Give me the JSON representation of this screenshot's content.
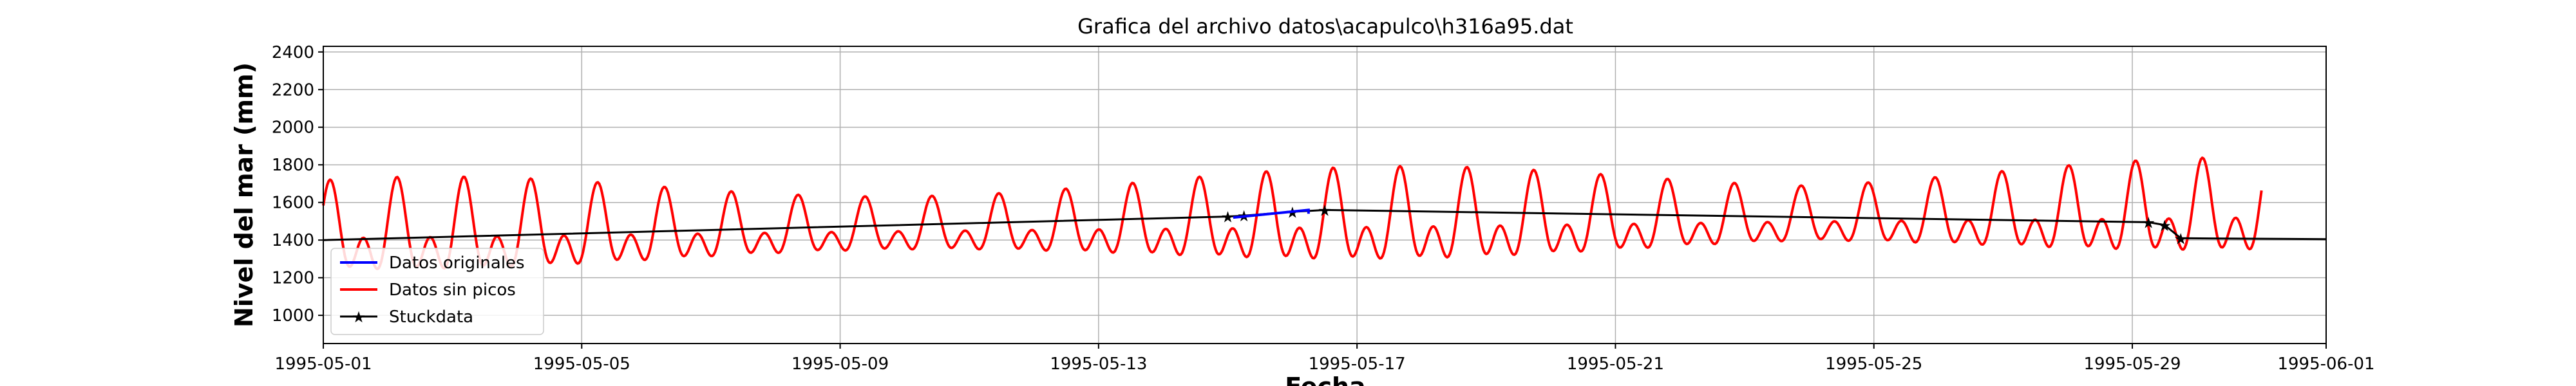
{
  "chart_data": {
    "type": "line",
    "title": "Grafica del archivo datos\\acapulco\\h316a95.dat",
    "xlabel": "Fecha",
    "ylabel": "Nivel del mar (mm)",
    "xlim": [
      "1995-05-01",
      "1995-06-01"
    ],
    "ylim": [
      850,
      2430
    ],
    "x_ticks": [
      "1995-05-01",
      "1995-05-05",
      "1995-05-09",
      "1995-05-13",
      "1995-05-17",
      "1995-05-21",
      "1995-05-25",
      "1995-05-29",
      "1995-06-01"
    ],
    "y_ticks": [
      1000,
      1200,
      1400,
      1600,
      1800,
      2000,
      2200,
      2400
    ],
    "grid": true,
    "legend": "lower-left",
    "series": [
      {
        "name": "Datos originales",
        "color": "#0000ff",
        "points": [
          [
            "1995-05-15T02:00",
            1520
          ],
          [
            "1995-05-16T06:00",
            1560
          ],
          [
            "1995-05-16T06:00",
            1540
          ]
        ]
      },
      {
        "name": "Datos sin picos",
        "color": "#ff0000",
        "tide": {
          "start": "1995-05-01",
          "end": "1995-05-31T00:00",
          "mean_start": 1420,
          "mean_end": 1530,
          "amplitude_min": 150,
          "amplitude_max": 260,
          "envelope_peaks_day": [
            1.5,
            16.5,
            29.5
          ],
          "diurnal_period_h": 24.84,
          "semidiurnal_period_h": 12.42
        }
      },
      {
        "name": "Stuckdata",
        "color": "#000000",
        "points": [
          [
            "1995-05-01",
            1400
          ],
          [
            "1995-05-15T00:00",
            1525
          ],
          [
            "1995-05-15T06:00",
            1530
          ],
          [
            "1995-05-16T00:00",
            1550
          ],
          [
            "1995-05-16T12:00",
            1560
          ],
          [
            "1995-05-29T06:00",
            1495
          ],
          [
            "1995-05-29T12:00",
            1480
          ],
          [
            "1995-05-29T18:00",
            1410
          ],
          [
            "1995-06-01",
            1405
          ]
        ]
      }
    ]
  }
}
